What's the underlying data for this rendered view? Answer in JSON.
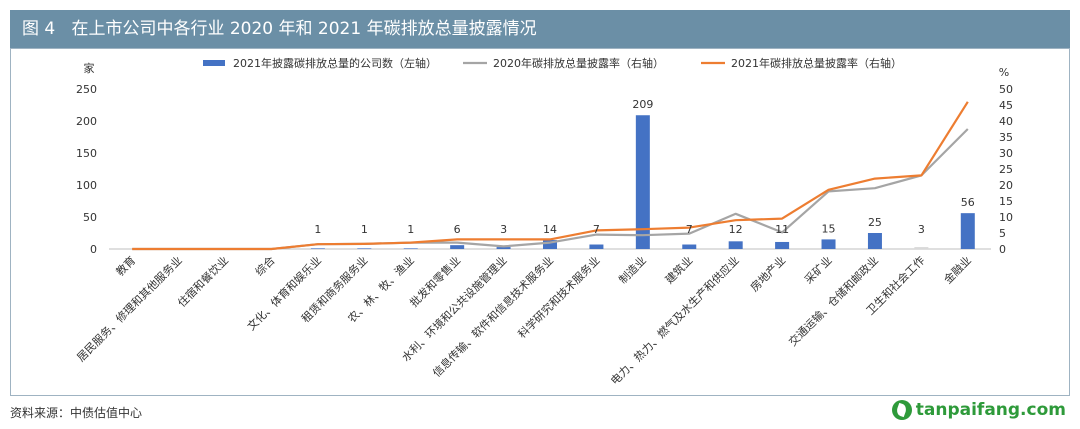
{
  "figure": {
    "label": "图 4",
    "title": "在上市公司中各行业 2020 年和 2021 年碳排放总量披露情况"
  },
  "source": "资料来源：中债估值中心",
  "watermark": "tanpaifang.com",
  "chart_data": {
    "type": "bar+line",
    "categories": [
      "教育",
      "居民服务、修理和其他服务业",
      "住宿和餐饮业",
      "综合",
      "文化、体育和娱乐业",
      "租赁和商务服务业",
      "农、林、牧、渔业",
      "批发和零售业",
      "水利、环境和公共设施管理业",
      "信息传输、软件和信息技术服务业",
      "科学研究和技术服务业",
      "制造业",
      "建筑业",
      "电力、热力、燃气及水生产和供应业",
      "房地产业",
      "采矿业",
      "交通运输、仓储和邮政业",
      "卫生和社会工作",
      "金融业"
    ],
    "left_axis": {
      "unit": "家",
      "ylim": [
        0,
        250
      ],
      "ticks": [
        0,
        50,
        100,
        150,
        200,
        250
      ]
    },
    "right_axis": {
      "unit": "%",
      "ylim": [
        0,
        50
      ],
      "ticks": [
        0,
        5,
        10,
        15,
        20,
        25,
        30,
        35,
        40,
        45,
        50
      ]
    },
    "bars": {
      "name": "2021年披露碳排放总量的公司数（左轴）",
      "axis": "left",
      "color": "#4472c4",
      "values": [
        0,
        0,
        0,
        0,
        1,
        1,
        1,
        6,
        3,
        14,
        7,
        209,
        7,
        12,
        11,
        15,
        25,
        3,
        56
      ],
      "labels": [
        "",
        "",
        "",
        "",
        "1",
        "1",
        "1",
        "6",
        "3",
        "14",
        "7",
        "209",
        "7",
        "12",
        "11",
        "15",
        "25",
        "3",
        "56"
      ]
    },
    "lines": [
      {
        "name": "2020年碳排放总量披露率（右轴）",
        "axis": "right",
        "color": "#a5a5a5",
        "values": [
          0,
          0,
          0,
          0,
          1.5,
          1.6,
          2.0,
          2.0,
          0.8,
          2.0,
          4.5,
          4.3,
          4.8,
          11.0,
          5.2,
          18.0,
          19.0,
          23.0,
          37.5
        ]
      },
      {
        "name": "2021年碳排放总量披露率（右轴）",
        "axis": "right",
        "color": "#ed7d31",
        "values": [
          0,
          0,
          0,
          0,
          1.5,
          1.6,
          2.0,
          3.0,
          3.0,
          3.0,
          5.8,
          6.2,
          6.7,
          9.0,
          9.5,
          18.5,
          22.0,
          23.0,
          46.0
        ]
      }
    ],
    "legend_position": "top-center",
    "grid": false
  }
}
